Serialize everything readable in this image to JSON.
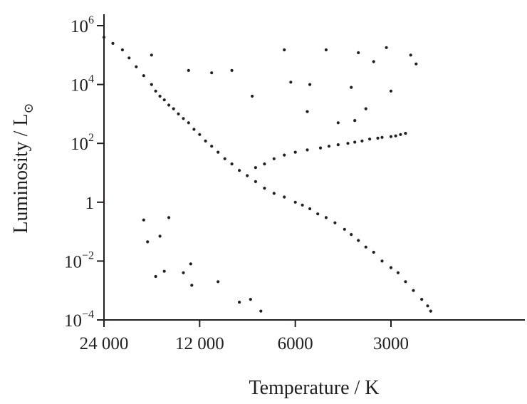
{
  "chart_data": {
    "type": "scatter",
    "title": "",
    "xlabel": "Temperature / K",
    "ylabel_main": "Luminosity / L",
    "ylabel_subscript": "⊙",
    "x_scale": "log",
    "x_reversed": true,
    "xlim": [
      24000,
      2200
    ],
    "y_scale": "log",
    "ylim": [
      0.0001,
      1000000
    ],
    "grid": false,
    "legend": "none",
    "x_ticks": [
      {
        "value": 24000,
        "label": "24 000"
      },
      {
        "value": 12000,
        "label": "12 000"
      },
      {
        "value": 6000,
        "label": "6000"
      },
      {
        "value": 3000,
        "label": "3000"
      }
    ],
    "y_ticks": [
      {
        "value": 1000000,
        "base": "10",
        "exp": "6"
      },
      {
        "value": 10000,
        "base": "10",
        "exp": "4"
      },
      {
        "value": 100,
        "base": "10",
        "exp": "2"
      },
      {
        "value": 1,
        "base": "1",
        "exp": ""
      },
      {
        "value": 0.01,
        "base": "10",
        "exp": "−2"
      },
      {
        "value": 0.0001,
        "base": "10",
        "exp": "−4"
      }
    ],
    "series": [
      {
        "group": "main-sequence",
        "points": [
          [
            24000,
            400000
          ],
          [
            22500,
            250000
          ],
          [
            21000,
            150000
          ],
          [
            20000,
            80000
          ],
          [
            19000,
            40000
          ],
          [
            18000,
            20000
          ],
          [
            17000,
            10000
          ],
          [
            16500,
            6000
          ],
          [
            16000,
            4000
          ],
          [
            15500,
            3000
          ],
          [
            15000,
            2000
          ],
          [
            14500,
            1500
          ],
          [
            14000,
            1000
          ],
          [
            13500,
            700
          ],
          [
            13000,
            500
          ],
          [
            12500,
            300
          ],
          [
            12000,
            200
          ],
          [
            11500,
            120
          ],
          [
            11000,
            80
          ],
          [
            10500,
            50
          ],
          [
            10000,
            30
          ],
          [
            9500,
            20
          ],
          [
            9000,
            12
          ],
          [
            8500,
            8
          ],
          [
            8000,
            5
          ],
          [
            7500,
            3
          ],
          [
            7000,
            2
          ],
          [
            6500,
            1.5
          ],
          [
            6000,
            1
          ],
          [
            5700,
            0.8
          ],
          [
            5400,
            0.6
          ],
          [
            5100,
            0.4
          ],
          [
            4800,
            0.3
          ],
          [
            4500,
            0.2
          ],
          [
            4200,
            0.12
          ],
          [
            4000,
            0.08
          ],
          [
            3800,
            0.05
          ],
          [
            3600,
            0.03
          ],
          [
            3400,
            0.02
          ],
          [
            3200,
            0.01
          ],
          [
            3000,
            0.006
          ],
          [
            2850,
            0.004
          ],
          [
            2700,
            0.002
          ],
          [
            2550,
            0.001
          ],
          [
            2400,
            0.0005
          ],
          [
            2300,
            0.0003
          ],
          [
            2250,
            0.0002
          ]
        ]
      },
      {
        "group": "giants",
        "points": [
          [
            8000,
            15
          ],
          [
            7500,
            20
          ],
          [
            7000,
            30
          ],
          [
            6500,
            40
          ],
          [
            6000,
            50
          ],
          [
            5500,
            60
          ],
          [
            5000,
            70
          ],
          [
            4700,
            80
          ],
          [
            4400,
            90
          ],
          [
            4100,
            100
          ],
          [
            3900,
            110
          ],
          [
            3700,
            120
          ],
          [
            3500,
            140
          ],
          [
            3300,
            150
          ],
          [
            3200,
            160
          ],
          [
            3000,
            170
          ],
          [
            2900,
            180
          ],
          [
            2800,
            200
          ],
          [
            2700,
            220
          ]
        ]
      },
      {
        "group": "supergiants",
        "points": [
          [
            17000,
            100000
          ],
          [
            13000,
            30000
          ],
          [
            11000,
            25000
          ],
          [
            9500,
            30000
          ],
          [
            6500,
            150000
          ],
          [
            4800,
            150000
          ],
          [
            3800,
            120000
          ],
          [
            3100,
            180000
          ],
          [
            2600,
            100000
          ],
          [
            2500,
            50000
          ],
          [
            6200,
            12000
          ],
          [
            5400,
            10000
          ],
          [
            3400,
            60000
          ],
          [
            3000,
            6000
          ],
          [
            4000,
            8000
          ],
          [
            8200,
            4000
          ],
          [
            5500,
            1200
          ],
          [
            3600,
            1500
          ],
          [
            3900,
            600
          ],
          [
            4400,
            500
          ]
        ]
      },
      {
        "group": "white-dwarfs",
        "points": [
          [
            16500,
            0.003
          ],
          [
            15500,
            0.0045
          ],
          [
            13500,
            0.004
          ],
          [
            12800,
            0.008
          ],
          [
            12700,
            0.0015
          ],
          [
            10500,
            0.002
          ],
          [
            9000,
            0.0004
          ],
          [
            8300,
            0.0005
          ],
          [
            7700,
            0.0002
          ],
          [
            17500,
            0.045
          ],
          [
            16000,
            0.07
          ],
          [
            18000,
            0.25
          ],
          [
            15000,
            0.3
          ]
        ]
      }
    ]
  }
}
